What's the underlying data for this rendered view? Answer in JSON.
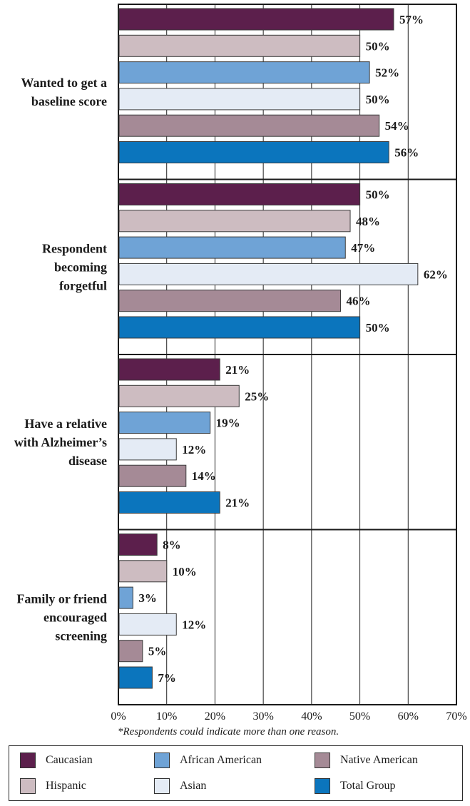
{
  "chart_data": {
    "type": "bar",
    "orientation": "horizontal",
    "categories": [
      [
        "Wanted to get a",
        "baseline score"
      ],
      [
        "Respondent",
        "becoming",
        "forgetful"
      ],
      [
        "Have a relative",
        "with Alzheimer’s",
        "disease"
      ],
      [
        "Family or friend",
        "encouraged",
        "screening"
      ]
    ],
    "series": [
      {
        "name": "Caucasian",
        "color": "#5c1f4c",
        "values": [
          57,
          50,
          21,
          8
        ]
      },
      {
        "name": "Hispanic",
        "color": "#cdbcc1",
        "values": [
          50,
          48,
          25,
          10
        ]
      },
      {
        "name": "African American",
        "color": "#6fa3d6",
        "values": [
          52,
          47,
          19,
          3
        ]
      },
      {
        "name": "Asian",
        "color": "#e4ebf5",
        "values": [
          50,
          62,
          12,
          12
        ]
      },
      {
        "name": "Native American",
        "color": "#a58a96",
        "values": [
          54,
          46,
          14,
          5
        ]
      },
      {
        "name": "Total Group",
        "color": "#0b75bd",
        "values": [
          56,
          50,
          21,
          7
        ]
      }
    ],
    "value_suffix": "%",
    "xlim": [
      0,
      70
    ],
    "xticks": [
      "0%",
      "10%",
      "20%",
      "30%",
      "40%",
      "50%",
      "60%",
      "70%"
    ],
    "grid": true,
    "legend_position": "bottom",
    "footnote": "*Respondents could indicate more than one reason."
  }
}
